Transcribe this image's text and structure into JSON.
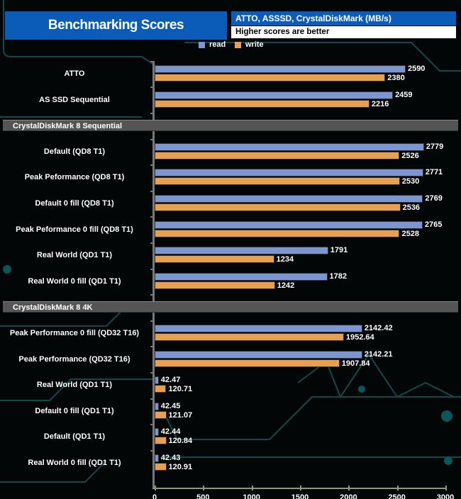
{
  "header": {
    "title": "Benchmarking Scores",
    "subtitle": "ATTO, ASSSD, CrystalDiskMark (MB/s)",
    "note": "Higher scores are better"
  },
  "colors": {
    "read": "#7b96d0",
    "write": "#e8a050",
    "axis": "#8a9a7a"
  },
  "chart_data": {
    "type": "bar",
    "orientation": "horizontal",
    "title": "Benchmarking Scores",
    "xlim": [
      0,
      3000
    ],
    "xticks": [
      "0",
      "500",
      "1000",
      "1500",
      "2000",
      "2500",
      "3000"
    ],
    "legend": [
      {
        "name": "read"
      },
      {
        "name": "write"
      }
    ],
    "legend_placement": "top-center",
    "rows": [
      {
        "label": "ATTO",
        "read": 2590,
        "write": 2380,
        "read_label": "2590",
        "write_label": "2380"
      },
      {
        "label": "AS SSD Sequential",
        "read": 2459,
        "write": 2216,
        "read_label": "2459",
        "write_label": "2216"
      },
      {
        "section": "CrystalDiskMark 8 Sequential"
      },
      {
        "label": "Default (QD8 T1)",
        "read": 2779,
        "write": 2526,
        "read_label": "2779",
        "write_label": "2526"
      },
      {
        "label": "Peak Peformance (QD8 T1)",
        "read": 2771,
        "write": 2530,
        "read_label": "2771",
        "write_label": "2530"
      },
      {
        "label": "Default 0 fill (QD8 T1)",
        "read": 2769,
        "write": 2536,
        "read_label": "2769",
        "write_label": "2536"
      },
      {
        "label": "Peak Peformance 0 fill (QD8 T1)",
        "read": 2765,
        "write": 2528,
        "read_label": "2765",
        "write_label": "2528"
      },
      {
        "label": "Real World (QD1 T1)",
        "read": 1791,
        "write": 1234,
        "read_label": "1791",
        "write_label": "1234"
      },
      {
        "label": "Real World 0 fill (QD1 T1)",
        "read": 1782,
        "write": 1242,
        "read_label": "1782",
        "write_label": "1242"
      },
      {
        "section": "CrystalDiskMark 8 4K"
      },
      {
        "label": "Peak Performance 0 fill (QD32 T16)",
        "read": 2142.42,
        "write": 1952.64,
        "read_label": "2142.42",
        "write_label": "1952.64"
      },
      {
        "label": "Peak Performance (QD32 T16)",
        "read": 2142.21,
        "write": 1907.84,
        "read_label": "2142.21",
        "write_label": "1907.84"
      },
      {
        "label": "Real World  (QD1 T1)",
        "read": 42.47,
        "write": 120.71,
        "read_label": "42.47",
        "write_label": "120.71"
      },
      {
        "label": "Default 0 fill (QD1 T1)",
        "read": 42.45,
        "write": 121.07,
        "read_label": "42.45",
        "write_label": "121.07"
      },
      {
        "label": "Default (QD1 T1)",
        "read": 42.44,
        "write": 120.84,
        "read_label": "42.44",
        "write_label": "120.84"
      },
      {
        "label": "Real World 0 fill  (QD1 T1)",
        "read": 42.43,
        "write": 120.91,
        "read_label": "42.43",
        "write_label": "120.91"
      }
    ]
  }
}
